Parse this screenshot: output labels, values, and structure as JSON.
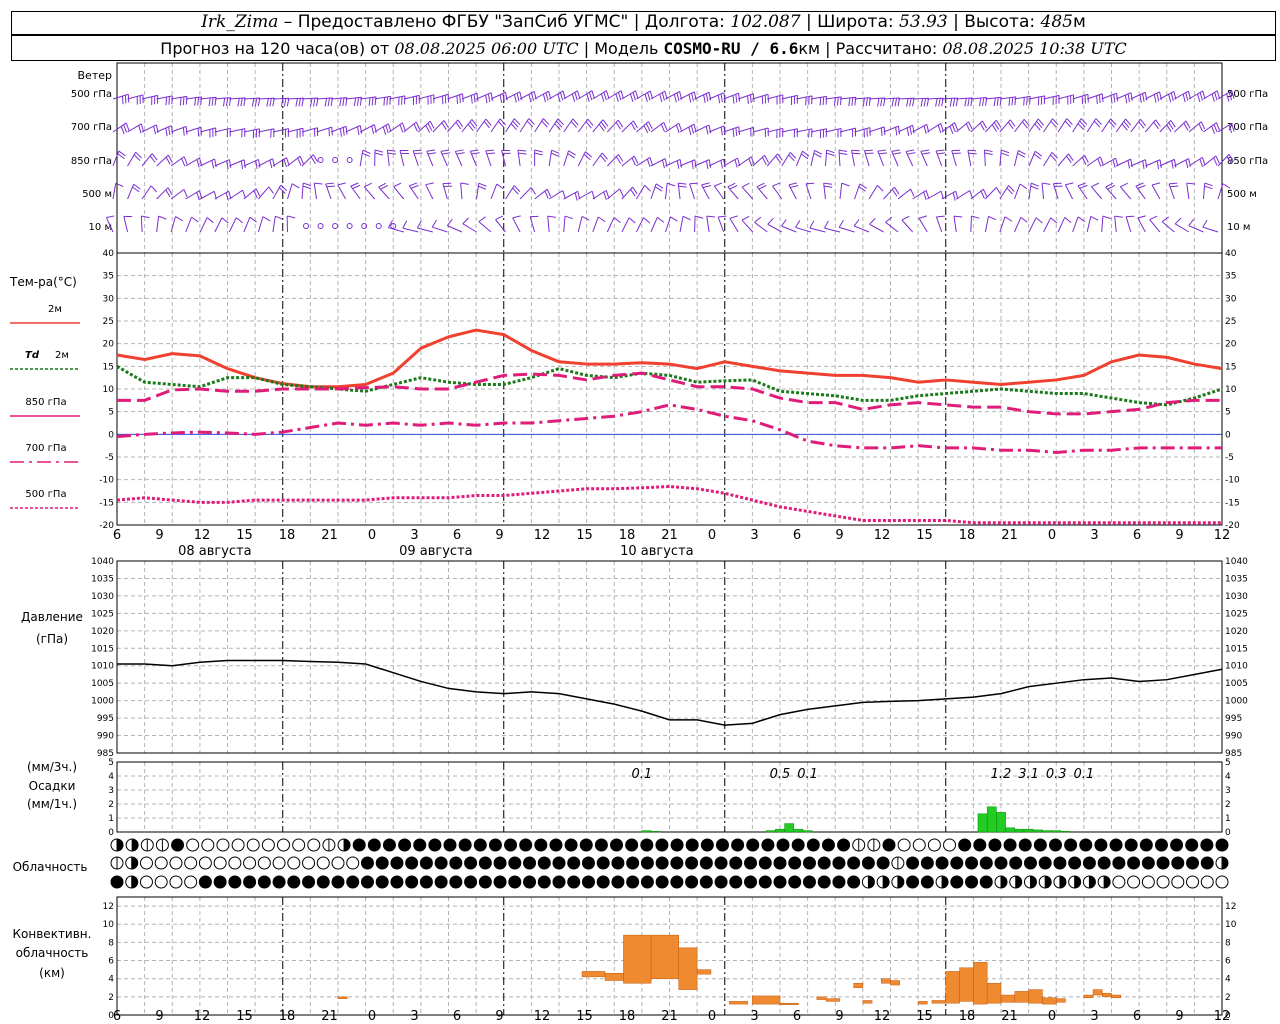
{
  "header": {
    "station": "Irk_Zima",
    "dash": " – ",
    "provided": "Предоставлено ФГБУ \"ЗапСиб УГМС\" |",
    "lon_label": "Долгота:",
    "lon": "102.087",
    "lat_label": "| Широта:",
    "lat": "53.93",
    "alt_label": "| Высота:",
    "alt": "485",
    "alt_unit": "м",
    "forecast_label": "Прогноз на 120 часа(ов) от",
    "forecast_from": "08.08.2025 06:00 UTC",
    "model_label": "| Модель",
    "model": "COSMO-RU / 6.6",
    "model_unit": "км",
    "calc_label": "| Рассчитано:",
    "calc": "08.08.2025 10:38 UTC"
  },
  "chart_data": [
    {
      "type": "wind_barbs",
      "panel": "wind",
      "title": "Ветер",
      "levels": [
        "500 гПа",
        "700 гПа",
        "850 гПа",
        "500 м",
        "10 м"
      ],
      "x_hours": [
        0,
        120
      ],
      "color": "#7a2ed0"
    },
    {
      "type": "line",
      "panel": "temperature",
      "ylabel": "Тем-ра(°C)",
      "ylim": [
        -20,
        40
      ],
      "yticks": [
        -20,
        -15,
        -10,
        -5,
        0,
        5,
        10,
        15,
        20,
        25,
        30,
        35,
        40
      ],
      "grid": true,
      "x": [
        0,
        3,
        6,
        9,
        12,
        15,
        18,
        21,
        24,
        27,
        30,
        33,
        36,
        39,
        42,
        45,
        48,
        51,
        54,
        57,
        60,
        63,
        66,
        69,
        72,
        75,
        78,
        81,
        84,
        87,
        90,
        93,
        96,
        99,
        102,
        105,
        108,
        111,
        114,
        117,
        120
      ],
      "series": [
        {
          "name": "2м",
          "color": "#f04030",
          "style": "solid",
          "values": [
            17.5,
            16.5,
            17.8,
            17.3,
            14.5,
            12.5,
            11.2,
            10.5,
            10.5,
            11,
            13.5,
            19,
            21.5,
            23,
            22,
            18.5,
            16,
            15.5,
            15.5,
            15.8,
            15.5,
            14.5,
            16,
            15,
            14,
            13.5,
            13,
            13,
            12.5,
            11.5,
            12,
            11.5,
            11,
            11.5,
            12,
            13,
            16,
            17.5,
            17,
            15.5,
            14.5
          ]
        },
        {
          "name": "Td 2м",
          "color": "#1a7a1a",
          "style": "dotted",
          "values": [
            15,
            11.5,
            11,
            10.5,
            12.5,
            12.5,
            11,
            10.5,
            10,
            9.5,
            11,
            12.5,
            11.5,
            11,
            11,
            12.5,
            14.5,
            13,
            12.5,
            13.5,
            13,
            11.5,
            11.8,
            12,
            9.5,
            9,
            8.5,
            7.5,
            7.5,
            8.5,
            9,
            9.5,
            10,
            9.5,
            9,
            9,
            8,
            7,
            6.5,
            8,
            10
          ]
        },
        {
          "name": "850 гПа",
          "color": "#e01c7a",
          "style": "long-dash",
          "values": [
            7.5,
            7.5,
            9.8,
            10,
            9.5,
            9.5,
            10,
            10,
            10,
            10.3,
            10.5,
            10,
            10,
            11.5,
            13,
            13.3,
            13,
            12,
            13,
            13.5,
            12,
            10.5,
            10.5,
            10,
            8,
            7,
            7,
            5.5,
            6.5,
            7,
            6.5,
            6,
            6,
            5,
            4.5,
            4.5,
            5,
            5.5,
            7,
            7.5,
            7.5
          ]
        },
        {
          "name": "700 гПа",
          "color": "#e01c7a",
          "style": "dash-dot",
          "values": [
            -0.5,
            0,
            0.3,
            0.5,
            0.3,
            0,
            0.5,
            1.5,
            2.5,
            2,
            2.5,
            2,
            2.5,
            2,
            2.5,
            2.5,
            3,
            3.5,
            4,
            5,
            6.5,
            5.5,
            4,
            3,
            1,
            -1.5,
            -2.5,
            -3,
            -3,
            -2.5,
            -3,
            -3,
            -3.5,
            -3.5,
            -4,
            -3.5,
            -3.5,
            -3,
            -3,
            -3,
            -3
          ]
        },
        {
          "name": "500 гПа",
          "color": "#e01c7a",
          "style": "dotted",
          "values": [
            -14.5,
            -14,
            -14.5,
            -15,
            -15,
            -14.5,
            -14.5,
            -14.5,
            -14.5,
            -14.5,
            -14,
            -14,
            -14,
            -13.5,
            -13.5,
            -13,
            -12.5,
            -12,
            -12,
            -11.8,
            -11.5,
            -12,
            -13,
            -14.5,
            -16,
            -17,
            -18,
            -19,
            -19,
            -19,
            -19,
            -19.5,
            -19.5,
            -19.5,
            -19.5,
            -19.5,
            -19.5,
            -19.5,
            -19.5,
            -19.5,
            -19.5
          ]
        }
      ]
    },
    {
      "type": "line",
      "panel": "pressure",
      "ylabel": "Давление (гПа)",
      "ylim": [
        985,
        1040
      ],
      "yticks": [
        985,
        990,
        995,
        1000,
        1005,
        1010,
        1015,
        1020,
        1025,
        1030,
        1035,
        1040
      ],
      "grid": true,
      "x": [
        0,
        3,
        6,
        9,
        12,
        15,
        18,
        21,
        24,
        27,
        30,
        33,
        36,
        39,
        42,
        45,
        48,
        51,
        54,
        57,
        60,
        63,
        66,
        69,
        72,
        75,
        78,
        81,
        84,
        87,
        90,
        93,
        96,
        99,
        102,
        105,
        108,
        111,
        114,
        117,
        120
      ],
      "series": [
        {
          "name": "",
          "color": "#000000",
          "values": [
            1010.5,
            1010.5,
            1010,
            1011,
            1011.5,
            1011.5,
            1011.5,
            1011.2,
            1011,
            1010.5,
            1008,
            1005.5,
            1003.5,
            1002.5,
            1002,
            1002.5,
            1002,
            1000.5,
            999,
            997,
            994.5,
            994.5,
            993,
            993.5,
            996,
            997.5,
            998.5,
            999.5,
            999.8,
            1000,
            1000.5,
            1001,
            1002,
            1004,
            1005,
            1006,
            1006.5,
            1005.5,
            1006,
            1007.5,
            1009
          ]
        }
      ]
    },
    {
      "type": "bar",
      "panel": "precipitation",
      "ylabel": "(мм/3ч.) Осадки (мм/1ч.)",
      "ylim": [
        0,
        5
      ],
      "yticks": [
        0,
        1,
        2,
        3,
        4,
        5
      ],
      "color": "#22cc22",
      "hourly": [
        {
          "h": 57.5,
          "v": 0.1
        },
        {
          "h": 58.5,
          "v": 0.05
        },
        {
          "h": 71,
          "v": 0.1
        },
        {
          "h": 72,
          "v": 0.2
        },
        {
          "h": 73,
          "v": 0.6
        },
        {
          "h": 74,
          "v": 0.2
        },
        {
          "h": 75,
          "v": 0.1
        },
        {
          "h": 94,
          "v": 1.3
        },
        {
          "h": 95,
          "v": 1.8
        },
        {
          "h": 96,
          "v": 1.4
        },
        {
          "h": 97,
          "v": 0.3
        },
        {
          "h": 98,
          "v": 0.2
        },
        {
          "h": 99,
          "v": 0.2
        },
        {
          "h": 100,
          "v": 0.15
        },
        {
          "h": 101,
          "v": 0.1
        },
        {
          "h": 102,
          "v": 0.1
        },
        {
          "h": 103,
          "v": 0.05
        }
      ],
      "totals": [
        {
          "h": 57,
          "label": "0.1"
        },
        {
          "h": 72,
          "label": "0.5"
        },
        {
          "h": 75,
          "label": "0.1"
        },
        {
          "h": 96,
          "label": "1.2"
        },
        {
          "h": 99,
          "label": "3.1"
        },
        {
          "h": 102,
          "label": "0.3"
        },
        {
          "h": 105,
          "label": "0.1"
        }
      ]
    },
    {
      "type": "cloud_symbols",
      "panel": "cloudiness",
      "ylabel": "Облачность",
      "rows": [
        "qqtthoooooooootqhhhhhhhhhhhhhhhhhhhhhhhhhhhhhhhhhtthoooohhhhhhhhhhhhhhhhhh",
        "tqooooooooooooooohhhhhhhhhhhhhhhhhhhhhhhhhhhhhhhhhhhhthhhhhhhhhhhhhhhhhhhhhq",
        "hqoooohhhhhhhhhhhhhhhhhhhhhhhhhhhhhhhhhhhhhhhhhhhhhqqqhhqhhhqqqqqqqqoooooooo"
      ]
    },
    {
      "type": "bar",
      "panel": "convective",
      "ylabel": "Конвективн. облачность (км)",
      "ylim": [
        0,
        13
      ],
      "yticks": [
        0,
        2,
        4,
        6,
        8,
        10,
        12
      ],
      "color": "#f08a30",
      "segments": [
        {
          "h0": 24,
          "h1": 25,
          "b": 1.8,
          "t": 2.0
        },
        {
          "h0": 50.5,
          "h1": 53,
          "b": 4.2,
          "t": 4.8
        },
        {
          "h0": 53,
          "h1": 55,
          "b": 3.8,
          "t": 4.6
        },
        {
          "h0": 55,
          "h1": 58,
          "b": 3.5,
          "t": 8.8
        },
        {
          "h0": 58,
          "h1": 61,
          "b": 4.0,
          "t": 8.8
        },
        {
          "h0": 61,
          "h1": 63,
          "b": 2.8,
          "t": 7.4
        },
        {
          "h0": 63,
          "h1": 64.5,
          "b": 4.5,
          "t": 5.0
        },
        {
          "h0": 66.5,
          "h1": 68.5,
          "b": 1.2,
          "t": 1.5
        },
        {
          "h0": 69,
          "h1": 72,
          "b": 1.2,
          "t": 2.1
        },
        {
          "h0": 72,
          "h1": 74,
          "b": 1.2,
          "t": 1.3
        },
        {
          "h0": 76,
          "h1": 77,
          "b": 1.7,
          "t": 2.0
        },
        {
          "h0": 77,
          "h1": 78.5,
          "b": 1.5,
          "t": 1.8
        },
        {
          "h0": 80,
          "h1": 81,
          "b": 3.0,
          "t": 3.5
        },
        {
          "h0": 81,
          "h1": 82,
          "b": 1.3,
          "t": 1.6
        },
        {
          "h0": 83,
          "h1": 84,
          "b": 3.5,
          "t": 4.0
        },
        {
          "h0": 84,
          "h1": 85,
          "b": 3.3,
          "t": 3.8
        },
        {
          "h0": 87,
          "h1": 88,
          "b": 1.2,
          "t": 1.5
        },
        {
          "h0": 88.5,
          "h1": 90,
          "b": 1.3,
          "t": 1.6
        },
        {
          "h0": 90,
          "h1": 91.5,
          "b": 1.3,
          "t": 4.8
        },
        {
          "h0": 91.5,
          "h1": 93,
          "b": 1.5,
          "t": 5.2
        },
        {
          "h0": 93,
          "h1": 94.5,
          "b": 1.2,
          "t": 5.8
        },
        {
          "h0": 94.5,
          "h1": 96,
          "b": 1.3,
          "t": 3.5
        },
        {
          "h0": 96,
          "h1": 97.5,
          "b": 1.4,
          "t": 2.2
        },
        {
          "h0": 97.5,
          "h1": 99,
          "b": 1.4,
          "t": 2.6
        },
        {
          "h0": 99,
          "h1": 100.5,
          "b": 1.3,
          "t": 2.8
        },
        {
          "h0": 100.5,
          "h1": 102,
          "b": 1.2,
          "t": 1.9
        },
        {
          "h0": 102,
          "h1": 103,
          "b": 1.4,
          "t": 1.8
        },
        {
          "h0": 105,
          "h1": 106,
          "b": 1.9,
          "t": 2.2
        },
        {
          "h0": 106,
          "h1": 107,
          "b": 2.2,
          "t": 2.8
        },
        {
          "h0": 107,
          "h1": 108,
          "b": 2.0,
          "t": 2.4
        },
        {
          "h0": 108,
          "h1": 109,
          "b": 1.9,
          "t": 2.2
        }
      ]
    }
  ],
  "axis": {
    "hour_ticks": [
      "6",
      "9",
      "12",
      "15",
      "18",
      "21",
      "0",
      "3",
      "6",
      "9",
      "12",
      "15",
      "18",
      "21",
      "0",
      "3",
      "6",
      "9",
      "12",
      "15",
      "18",
      "21",
      "0",
      "3",
      "6",
      "9",
      "12"
    ],
    "dates": [
      "08 августа",
      "09 августа",
      "10 августа"
    ],
    "date_hours": [
      9,
      33,
      57
    ]
  },
  "legend": {
    "t2m": "2м",
    "td_sym": "Td",
    "td_lvl": "2м",
    "p850": "850 гПа",
    "p700": "700 гПа",
    "p500": "500 гПа"
  },
  "labels": {
    "wind": "Ветер",
    "wind_levels": [
      "500 гПа",
      "700 гПа",
      "850 гПа",
      "500  м",
      "10  м"
    ],
    "temp": "Тем-ра(°C)",
    "pres1": "Давление",
    "pres2": "(гПа)",
    "prec1": "(мм/3ч.)",
    "prec2": "Осадки",
    "prec3": "(мм/1ч.)",
    "cloud": "Облачность",
    "conv1": "Конвективн.",
    "conv2": "облачность",
    "conv3": "(км)"
  }
}
